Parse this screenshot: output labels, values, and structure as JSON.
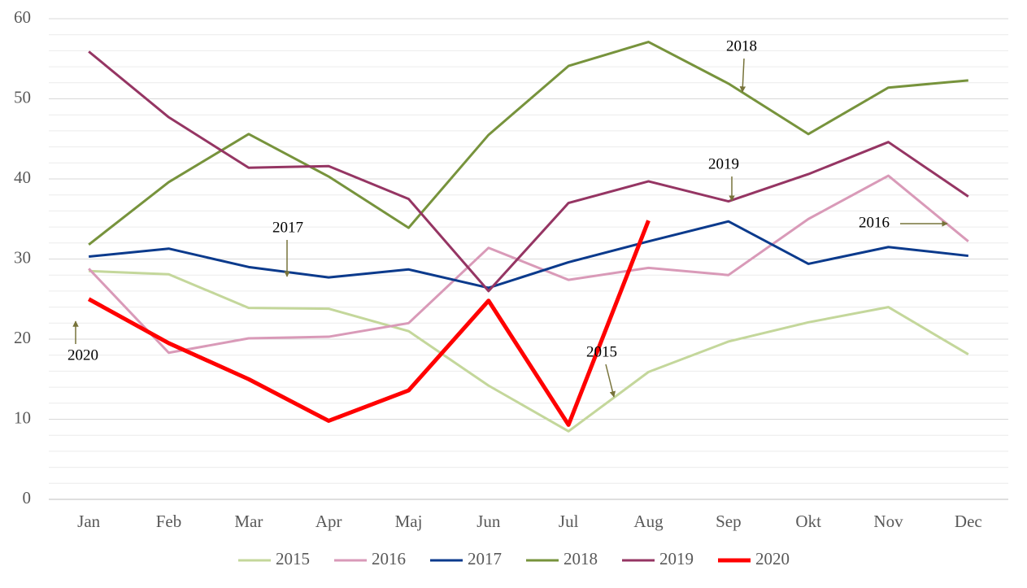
{
  "chart_data": {
    "type": "line",
    "categories": [
      "Jan",
      "Feb",
      "Mar",
      "Apr",
      "Maj",
      "Jun",
      "Jul",
      "Aug",
      "Sep",
      "Okt",
      "Nov",
      "Dec"
    ],
    "series": [
      {
        "name": "2015",
        "color": "#c4d79b",
        "values": [
          28.5,
          28.1,
          23.9,
          23.8,
          21.0,
          14.2,
          8.5,
          15.9,
          19.7,
          22.1,
          24.0,
          18.1
        ]
      },
      {
        "name": "2016",
        "color": "#d99ab8",
        "values": [
          28.8,
          18.3,
          20.1,
          20.3,
          22.0,
          31.4,
          27.4,
          28.9,
          28.0,
          35.0,
          40.4,
          32.2
        ]
      },
      {
        "name": "2017",
        "color": "#0b3a8c",
        "values": [
          30.3,
          31.3,
          29.0,
          27.7,
          28.7,
          26.4,
          29.6,
          32.2,
          34.7,
          29.4,
          31.5,
          30.4
        ]
      },
      {
        "name": "2018",
        "color": "#77933c",
        "values": [
          31.8,
          39.6,
          45.6,
          40.3,
          33.9,
          45.5,
          54.1,
          57.1,
          51.9,
          45.6,
          51.4,
          52.3
        ]
      },
      {
        "name": "2019",
        "color": "#953563",
        "values": [
          55.9,
          47.7,
          41.4,
          41.6,
          37.5,
          26.0,
          37.0,
          39.7,
          37.2,
          40.6,
          44.6,
          37.8
        ]
      },
      {
        "name": "2020",
        "color": "#ff0000",
        "values": [
          25.0,
          19.5,
          15.0,
          9.8,
          13.6,
          24.8,
          9.3,
          34.8,
          null,
          null,
          null,
          null
        ]
      }
    ],
    "annotations": [
      {
        "text": "2018"
      },
      {
        "text": "2019"
      },
      {
        "text": "2017"
      },
      {
        "text": "2016"
      },
      {
        "text": "2015"
      },
      {
        "text": "2020"
      }
    ],
    "ylim": [
      0,
      60
    ],
    "yticks": [
      0,
      10,
      20,
      30,
      40,
      50,
      60
    ],
    "grid": true,
    "minor_grid": true,
    "legend": "bottom"
  }
}
